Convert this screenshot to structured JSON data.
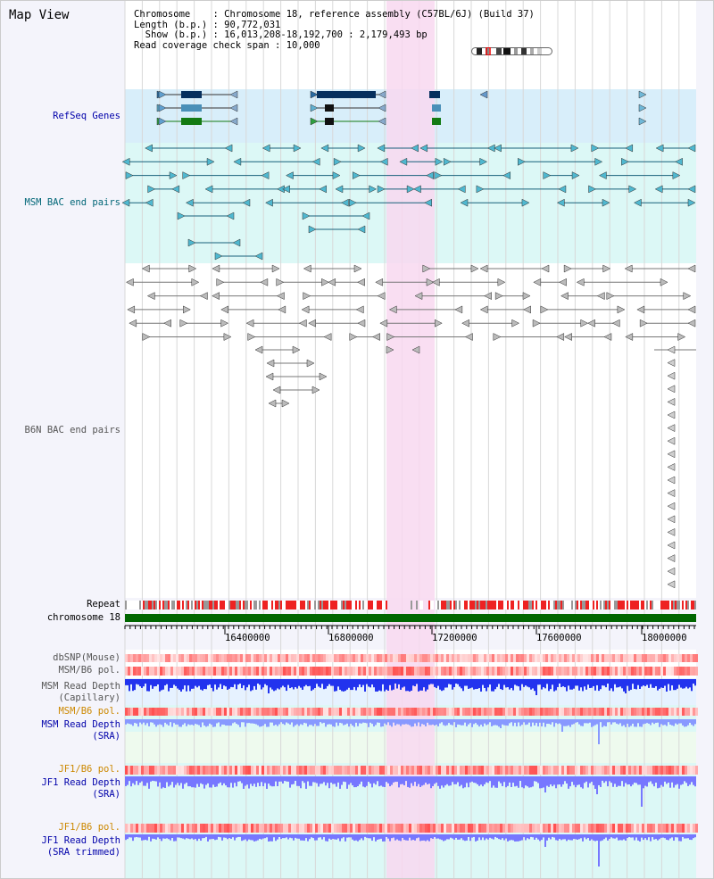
{
  "title": "Map View",
  "info": {
    "chromosome_key": "Chromosome",
    "chromosome_val": ": Chromosome 18, reference assembly (C57BL/6J) (Build 37)",
    "length_key": "Length (b.p.)",
    "length_val": ": 90,772,031",
    "show_key": "Show (b.p.)",
    "show_val": ": 16,013,208-18,192,700 : 2,179,493 bp",
    "coverage_key": "Read coverage check span",
    "coverage_val": ": 10,000"
  },
  "tracks": {
    "refseq": "RefSeq Genes",
    "msm_bac": "MSM BAC end pairs",
    "b6n_bac": "B6N BAC end pairs",
    "repeat": "Repeat",
    "chromosome": "chromosome 18",
    "dbsnp": "dbSNP(Mouse)",
    "msm_b6_pol_1": "MSM/B6 pol.",
    "msm_depth_cap_1": "MSM Read Depth",
    "msm_depth_cap_2": "(Capillary)",
    "msm_b6_pol_2": "MSM/B6 pol.",
    "msm_depth_sra_1": "MSM Read Depth",
    "msm_depth_sra_2": "(SRA)",
    "jf1_b6_pol_1": "JF1/B6 pol.",
    "jf1_depth_sra_1": "JF1 Read Depth",
    "jf1_depth_sra_2": "(SRA)",
    "jf1_b6_pol_2": "JF1/B6 pol.",
    "jf1_depth_trim_1": "JF1 Read Depth",
    "jf1_depth_trim_2": "(SRA trimmed)"
  },
  "axis": {
    "ticks": [
      "16400000",
      "16800000",
      "17200000",
      "17600000",
      "18000000"
    ]
  },
  "colors": {
    "navy_label": "#0000aa",
    "teal_label": "#006677",
    "gray_label": "#555555",
    "orange_label": "#cc8800",
    "highlight": "#f8d8f0",
    "refseq_bg": "#d8eefa",
    "bac_bg": "#dcf8f6",
    "chromosome_bar": "#006600"
  }
}
